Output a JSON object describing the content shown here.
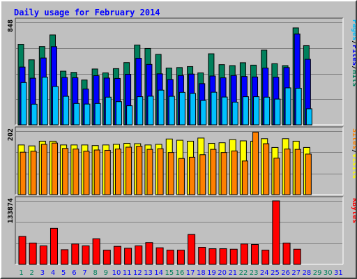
{
  "chart_data": [
    {
      "type": "bar",
      "title": "Daily usage for February 2014",
      "categories": [
        "1",
        "2",
        "3",
        "4",
        "5",
        "6",
        "7",
        "8",
        "9",
        "10",
        "11",
        "12",
        "13",
        "14",
        "15",
        "16",
        "17",
        "18",
        "19",
        "20",
        "21",
        "22",
        "23",
        "24",
        "25",
        "26",
        "27",
        "28",
        "29",
        "30",
        "31"
      ],
      "weekend_days": [
        "1",
        "2",
        "8",
        "9",
        "15",
        "16",
        "22",
        "23",
        "29",
        "30"
      ],
      "ylabel": "848",
      "ylim": [
        0,
        848
      ],
      "legend": {
        "position": "right",
        "items": [
          "Pages",
          "Files",
          "Hits"
        ]
      },
      "series": [
        {
          "name": "Hits",
          "color": "#00805c",
          "values": [
            666,
            538,
            648,
            744,
            444,
            434,
            371,
            462,
            430,
            465,
            515,
            660,
            632,
            583,
            470,
            474,
            482,
            430,
            588,
            498,
            490,
            514,
            494,
            618,
            506,
            490,
            802,
            655,
            0,
            0,
            0
          ]
        },
        {
          "name": "Files",
          "color": "#0000ff",
          "values": [
            478,
            386,
            553,
            647,
            392,
            390,
            296,
            407,
            387,
            384,
            418,
            551,
            500,
            422,
            375,
            408,
            420,
            341,
            404,
            389,
            408,
            400,
            396,
            470,
            394,
            474,
            751,
            542,
            0,
            0,
            0
          ]
        },
        {
          "name": "Pages",
          "color": "#00c0ff",
          "values": [
            350,
            171,
            394,
            317,
            236,
            177,
            172,
            177,
            229,
            192,
            158,
            233,
            237,
            287,
            236,
            269,
            260,
            202,
            270,
            230,
            188,
            233,
            233,
            229,
            213,
            306,
            303,
            133,
            0,
            0,
            0
          ]
        }
      ]
    },
    {
      "type": "bar",
      "ylabel": "202",
      "ylim": [
        0,
        202
      ],
      "legend": {
        "position": "right",
        "items": [
          "Sites",
          "Visits"
        ]
      },
      "series": [
        {
          "name": "Visits",
          "color": "#ffff00",
          "values": [
            158,
            155,
            170,
            170,
            158,
            158,
            158,
            156,
            158,
            160,
            163,
            162,
            158,
            160,
            177,
            173,
            170,
            180,
            163,
            165,
            175,
            171,
            170,
            178,
            150,
            178,
            170,
            150,
            0,
            0,
            0
          ]
        },
        {
          "name": "Sites",
          "color": "#ff8000",
          "values": [
            135,
            138,
            160,
            164,
            147,
            145,
            138,
            142,
            141,
            145,
            151,
            154,
            144,
            146,
            134,
            115,
            119,
            127,
            144,
            134,
            139,
            107,
            199,
            162,
            116,
            145,
            144,
            129,
            0,
            0,
            0
          ]
        }
      ]
    },
    {
      "type": "bar",
      "ylabel": "133874",
      "ylim": [
        0,
        133874
      ],
      "legend": {
        "position": "right",
        "items": [
          "KBytes"
        ]
      },
      "series": [
        {
          "name": "KBytes",
          "color": "#ff0000",
          "values": [
            59000,
            45000,
            39000,
            76000,
            31000,
            43000,
            39000,
            54000,
            30000,
            38000,
            34000,
            39000,
            46000,
            35000,
            30000,
            30000,
            63000,
            36000,
            33000,
            33000,
            32000,
            43000,
            42000,
            30000,
            133874,
            45000,
            32000,
            0,
            0,
            0,
            0
          ]
        }
      ]
    }
  ],
  "colors": {
    "weekday_label": "#0000ff",
    "weekend_label": "#00805c"
  }
}
